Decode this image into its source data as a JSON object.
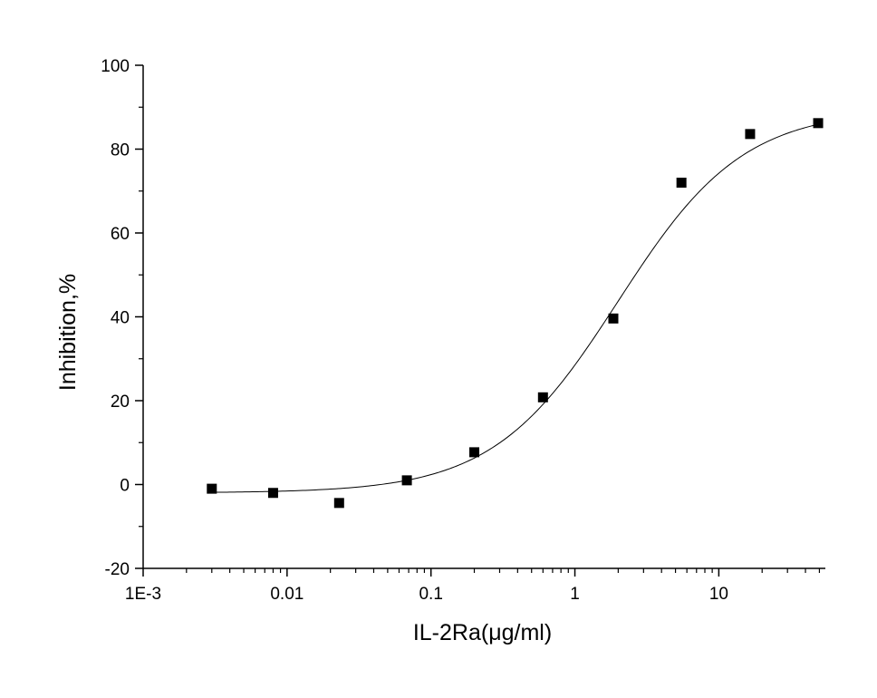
{
  "chart_data": {
    "type": "scatter",
    "title": "",
    "xlabel": "IL-2Ra(μg/ml)",
    "ylabel": "Inhibition,%",
    "x_scale": "log",
    "xlim": [
      0.001,
      55
    ],
    "ylim": [
      -20,
      100
    ],
    "x_tick_values": [
      0.001,
      0.01,
      0.1,
      1,
      10
    ],
    "x_tick_labels": [
      "1E-3",
      "0.01",
      "0.1",
      "1",
      "10"
    ],
    "y_tick_values": [
      -20,
      0,
      20,
      40,
      60,
      80,
      100
    ],
    "y_tick_labels": [
      "-20",
      "0",
      "20",
      "40",
      "60",
      "80",
      "100"
    ],
    "grid": false,
    "legend": "none",
    "series": [
      {
        "marker": "square",
        "color": "#000000",
        "x": [
          0.003,
          0.008,
          0.023,
          0.068,
          0.2,
          0.6,
          1.85,
          5.5,
          16.5,
          49
        ],
        "y": [
          -1,
          -2,
          -4.4,
          1,
          7.7,
          20.8,
          39.6,
          72,
          83.6,
          86.2
        ]
      }
    ],
    "fit": {
      "type": "logistic",
      "color": "#000000",
      "bottom": -2,
      "top": 89.5,
      "ec50": 2.0,
      "hill": 1.0
    }
  }
}
